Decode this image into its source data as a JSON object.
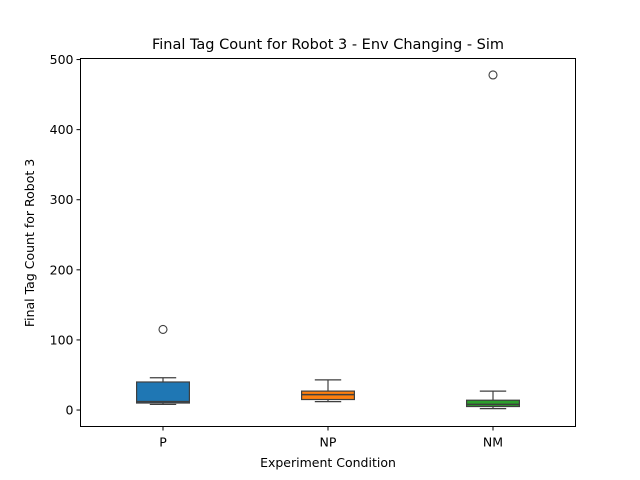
{
  "chart_data": {
    "type": "box",
    "title": "Final Tag Count for Robot 3 - Env Changing - Sim",
    "xlabel": "Experiment Condition",
    "ylabel": "Final Tag Count for Robot 3",
    "ylim": [
      -23.5,
      501.5
    ],
    "yticks": [
      0,
      100,
      200,
      300,
      400,
      500
    ],
    "ytick_labels": [
      "0",
      "100",
      "200",
      "300",
      "400",
      "500"
    ],
    "grid": false,
    "categories": [
      "P",
      "NP",
      "NM"
    ],
    "boxes": [
      {
        "name": "P",
        "color": "#1f77b4",
        "whisker_low": 8,
        "q1": 10,
        "median": 12,
        "q3": 40,
        "whisker_high": 46,
        "outliers": [
          115
        ]
      },
      {
        "name": "NP",
        "color": "#ff7f0e",
        "whisker_low": 12,
        "q1": 15,
        "median": 22,
        "q3": 27,
        "whisker_high": 43,
        "outliers": []
      },
      {
        "name": "NM",
        "color": "#2ca02c",
        "whisker_low": 2,
        "q1": 5,
        "median": 8,
        "q3": 14,
        "whisker_high": 27,
        "outliers": [
          478
        ]
      }
    ]
  }
}
